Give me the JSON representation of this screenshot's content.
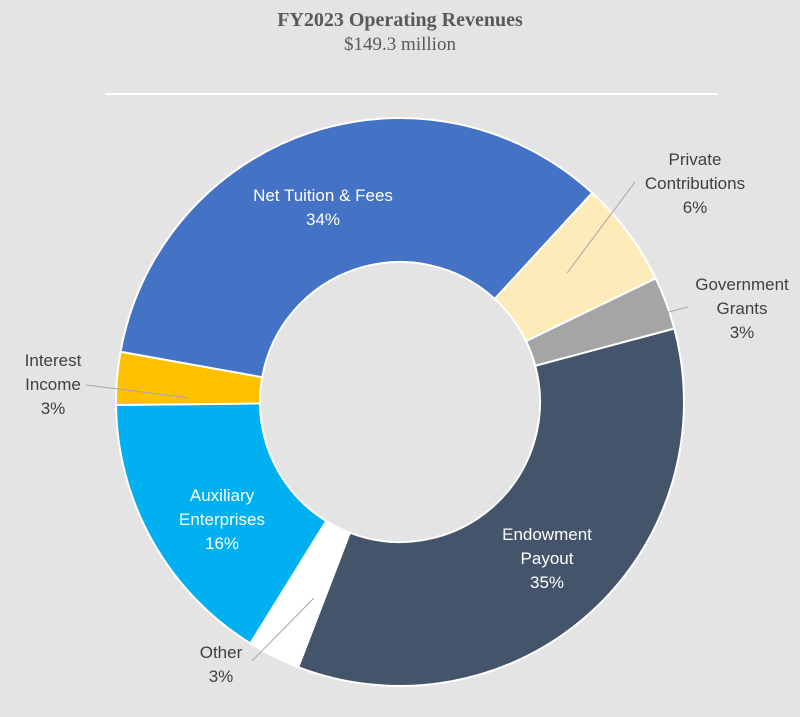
{
  "chart_data": {
    "type": "donut",
    "title": "FY2023 Operating Revenues",
    "subtitle": "$149.3 million",
    "categories": [
      "Endowment Payout",
      "Other",
      "Auxiliary Enterprises",
      "Interest Income",
      "Net Tuition & Fees",
      "Private Contributions",
      "Government Grants"
    ],
    "values": [
      35,
      3,
      16,
      3,
      34,
      6,
      3
    ],
    "value_labels": [
      "35%",
      "3%",
      "16%",
      "3%",
      "34%",
      "6%",
      "3%"
    ],
    "colors": [
      "#44546a",
      "#ffffff",
      "#00b0f0",
      "#ffc000",
      "#4472c4",
      "#fdebb9",
      "#a5a5a5"
    ]
  }
}
